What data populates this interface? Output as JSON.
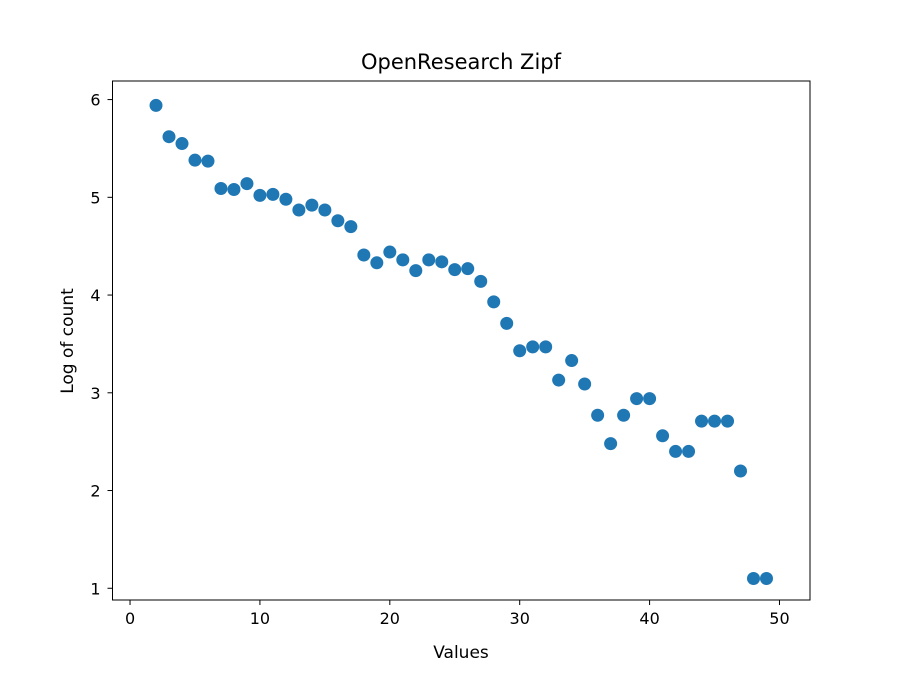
{
  "chart_data": {
    "type": "scatter",
    "title": "OpenResearch Zipf",
    "xlabel": "Values",
    "ylabel": "Log of count",
    "xlim": [
      -1.35,
      52.35
    ],
    "ylim": [
      0.88,
      6.19
    ],
    "x_ticks": [
      0,
      10,
      20,
      30,
      40,
      50
    ],
    "y_ticks": [
      1,
      2,
      3,
      4,
      5,
      6
    ],
    "grid": false,
    "marker_color": "#1f77b4",
    "series": [
      {
        "x": [
          2,
          3,
          4,
          5,
          6,
          7,
          8,
          9,
          10,
          11,
          12,
          13,
          14,
          15,
          16,
          17,
          18,
          19,
          20,
          21,
          22,
          23,
          24,
          25,
          26,
          27,
          28,
          29,
          30,
          31,
          32,
          33,
          34,
          35,
          36,
          37,
          38,
          39,
          40,
          41,
          42,
          43,
          44,
          45,
          46,
          47,
          48,
          49
        ],
        "y": [
          5.94,
          5.62,
          5.55,
          5.38,
          5.37,
          5.09,
          5.08,
          5.14,
          5.02,
          5.03,
          4.98,
          4.87,
          4.92,
          4.87,
          4.76,
          4.7,
          4.41,
          4.33,
          4.44,
          4.36,
          4.25,
          4.36,
          4.34,
          4.26,
          4.27,
          4.14,
          3.93,
          3.71,
          3.43,
          3.47,
          3.47,
          3.13,
          3.33,
          3.09,
          2.77,
          2.48,
          2.77,
          2.94,
          2.94,
          2.56,
          2.4,
          2.4,
          2.71,
          2.71,
          2.71,
          2.2,
          1.1,
          1.1
        ]
      }
    ]
  }
}
